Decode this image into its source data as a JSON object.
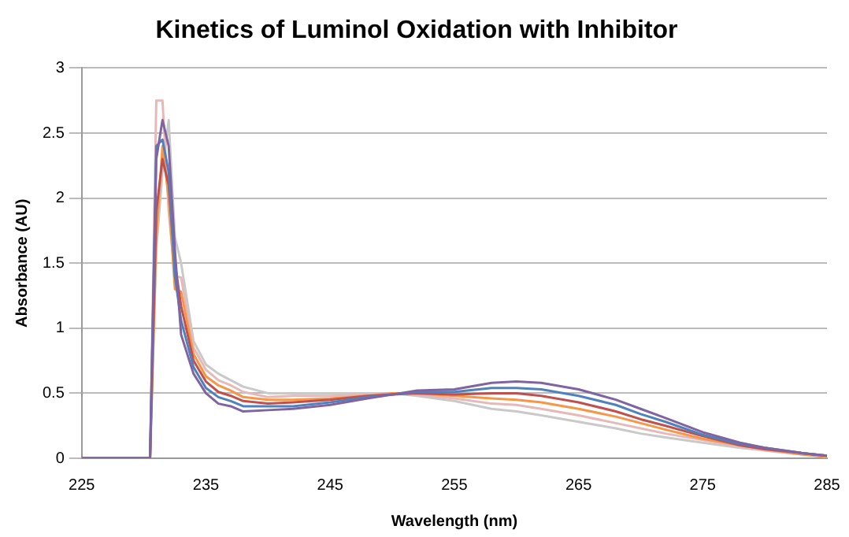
{
  "chart_data": {
    "type": "line",
    "title": "Kinetics of Luminol Oxidation with Inhibitor",
    "xlabel": "Wavelength (nm)",
    "ylabel": "Absorbance (AU)",
    "x": [
      225,
      230.5,
      231,
      231.5,
      232,
      232.5,
      233,
      233.5,
      234,
      235,
      236,
      237,
      238,
      240,
      242,
      245,
      248,
      250,
      252,
      255,
      258,
      260,
      262,
      265,
      268,
      270,
      272,
      275,
      278,
      280,
      283,
      285
    ],
    "series": [
      {
        "color": "#8064a2",
        "values": [
          0,
          0,
          2.3,
          2.6,
          2.4,
          1.6,
          0.95,
          0.8,
          0.65,
          0.5,
          0.42,
          0.4,
          0.36,
          0.37,
          0.38,
          0.41,
          0.46,
          0.49,
          0.52,
          0.53,
          0.58,
          0.59,
          0.58,
          0.53,
          0.45,
          0.38,
          0.31,
          0.2,
          0.12,
          0.08,
          0.04,
          0.02
        ]
      },
      {
        "color": "#4f81bd",
        "values": [
          0,
          0,
          2.4,
          2.45,
          2.2,
          1.4,
          1.06,
          0.88,
          0.7,
          0.54,
          0.47,
          0.44,
          0.4,
          0.4,
          0.4,
          0.43,
          0.47,
          0.49,
          0.51,
          0.51,
          0.54,
          0.54,
          0.53,
          0.48,
          0.41,
          0.34,
          0.28,
          0.18,
          0.11,
          0.08,
          0.04,
          0.02
        ]
      },
      {
        "color": "#c0504d",
        "values": [
          0,
          0,
          1.9,
          2.3,
          2.1,
          1.5,
          1.17,
          0.96,
          0.75,
          0.59,
          0.51,
          0.48,
          0.44,
          0.42,
          0.43,
          0.45,
          0.48,
          0.49,
          0.5,
          0.49,
          0.5,
          0.5,
          0.48,
          0.43,
          0.36,
          0.3,
          0.25,
          0.17,
          0.1,
          0.07,
          0.04,
          0.02
        ]
      },
      {
        "color": "#f79646",
        "values": [
          0,
          0,
          1.7,
          2.4,
          2.0,
          1.3,
          1.28,
          1.04,
          0.8,
          0.63,
          0.56,
          0.52,
          0.47,
          0.45,
          0.45,
          0.46,
          0.48,
          0.5,
          0.5,
          0.48,
          0.46,
          0.45,
          0.43,
          0.38,
          0.32,
          0.27,
          0.22,
          0.15,
          0.1,
          0.07,
          0.03,
          0.01
        ]
      },
      {
        "color": "#e6b9b8",
        "values": [
          0,
          0,
          2.75,
          2.75,
          1.9,
          1.4,
          1.39,
          1.12,
          0.85,
          0.68,
          0.6,
          0.56,
          0.51,
          0.47,
          0.48,
          0.48,
          0.49,
          0.5,
          0.49,
          0.46,
          0.42,
          0.41,
          0.38,
          0.33,
          0.27,
          0.23,
          0.19,
          0.14,
          0.09,
          0.06,
          0.03,
          0.01
        ]
      },
      {
        "color": "#c9c9c9",
        "values": [
          0,
          0,
          1.6,
          2.2,
          2.6,
          1.7,
          1.5,
          1.2,
          0.9,
          0.72,
          0.65,
          0.6,
          0.55,
          0.5,
          0.5,
          0.5,
          0.5,
          0.5,
          0.48,
          0.44,
          0.38,
          0.36,
          0.33,
          0.28,
          0.23,
          0.19,
          0.16,
          0.12,
          0.08,
          0.06,
          0.03,
          0.01
        ]
      }
    ],
    "xlim": [
      225,
      285
    ],
    "xticks": [
      225,
      235,
      245,
      255,
      265,
      275,
      285
    ],
    "ylim": [
      0,
      3
    ],
    "yticks": [
      0,
      0.5,
      1,
      1.5,
      2,
      2.5,
      3
    ],
    "grid": "y",
    "legend": false,
    "marker": "none",
    "line_style": "solid"
  }
}
